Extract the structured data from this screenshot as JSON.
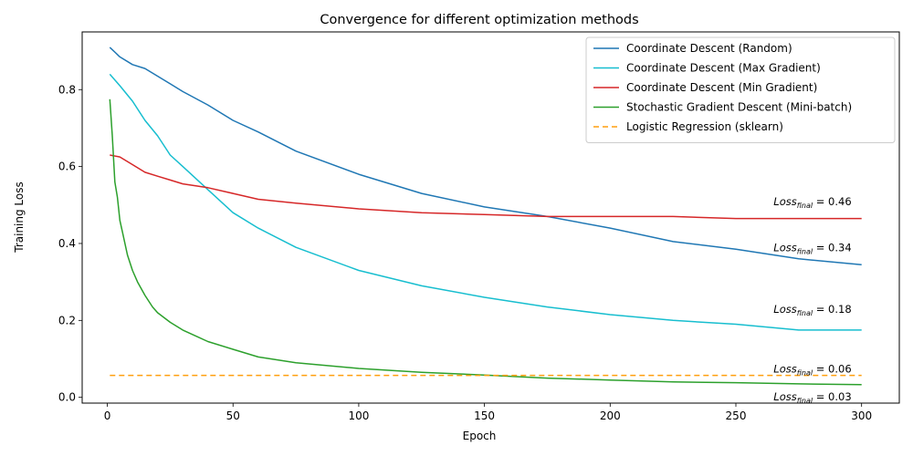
{
  "chart_data": {
    "type": "line",
    "title": "Convergence for different optimization methods",
    "xlabel": "Epoch",
    "ylabel": "Training Loss",
    "xlim": [
      -10,
      315
    ],
    "ylim": [
      -0.015,
      0.95
    ],
    "xticks": [
      0,
      50,
      100,
      150,
      200,
      250,
      300
    ],
    "yticks": [
      0.0,
      0.2,
      0.4,
      0.6,
      0.8
    ],
    "ytick_labels": [
      "0.0",
      "0.2",
      "0.4",
      "0.6",
      "0.8"
    ],
    "grid": false,
    "legend_position": "top-right",
    "series": [
      {
        "name": "Coordinate Descent (Random)",
        "color": "#1f77b4",
        "style": "solid",
        "x": [
          1,
          5,
          10,
          15,
          20,
          25,
          30,
          40,
          50,
          60,
          75,
          100,
          125,
          150,
          175,
          200,
          225,
          250,
          275,
          300
        ],
        "y": [
          0.91,
          0.885,
          0.865,
          0.855,
          0.835,
          0.815,
          0.795,
          0.76,
          0.72,
          0.69,
          0.64,
          0.58,
          0.53,
          0.495,
          0.47,
          0.44,
          0.405,
          0.385,
          0.36,
          0.345
        ]
      },
      {
        "name": "Coordinate Descent (Max Gradient)",
        "color": "#17becf",
        "style": "solid",
        "x": [
          1,
          5,
          10,
          15,
          20,
          25,
          30,
          40,
          50,
          60,
          75,
          100,
          125,
          150,
          175,
          200,
          225,
          250,
          275,
          300
        ],
        "y": [
          0.84,
          0.81,
          0.77,
          0.72,
          0.68,
          0.63,
          0.6,
          0.54,
          0.48,
          0.44,
          0.39,
          0.33,
          0.29,
          0.26,
          0.235,
          0.215,
          0.2,
          0.19,
          0.175,
          0.175
        ]
      },
      {
        "name": "Coordinate Descent (Min Gradient)",
        "color": "#d62728",
        "style": "solid",
        "x": [
          1,
          5,
          10,
          15,
          20,
          25,
          30,
          40,
          50,
          60,
          75,
          100,
          125,
          150,
          175,
          200,
          225,
          250,
          275,
          300
        ],
        "y": [
          0.63,
          0.625,
          0.605,
          0.585,
          0.575,
          0.565,
          0.555,
          0.545,
          0.53,
          0.515,
          0.505,
          0.49,
          0.48,
          0.475,
          0.47,
          0.47,
          0.47,
          0.465,
          0.465,
          0.465
        ]
      },
      {
        "name": "Stochastic Gradient Descent (Mini-batch)",
        "color": "#2ca02c",
        "style": "solid",
        "x": [
          1,
          2,
          3,
          4,
          5,
          6,
          8,
          10,
          12,
          15,
          18,
          20,
          25,
          30,
          35,
          40,
          50,
          60,
          75,
          100,
          125,
          150,
          175,
          200,
          225,
          250,
          275,
          300
        ],
        "y": [
          0.775,
          0.68,
          0.56,
          0.52,
          0.46,
          0.43,
          0.37,
          0.33,
          0.3,
          0.265,
          0.235,
          0.22,
          0.195,
          0.175,
          0.16,
          0.145,
          0.125,
          0.105,
          0.09,
          0.075,
          0.065,
          0.058,
          0.05,
          0.045,
          0.04,
          0.038,
          0.035,
          0.033
        ]
      },
      {
        "name": "Logistic Regression (sklearn)",
        "color": "#ff9f0f",
        "style": "dashed",
        "x": [
          1,
          300
        ],
        "y": [
          0.057,
          0.057
        ]
      }
    ],
    "annotations": [
      {
        "prefix": "Loss",
        "sub": "final",
        "suffix": " = 0.46",
        "x": 265,
        "y": 0.5,
        "color": "#000000"
      },
      {
        "prefix": "Loss",
        "sub": "final",
        "suffix": " = 0.34",
        "x": 265,
        "y": 0.38,
        "color": "#000000"
      },
      {
        "prefix": "Loss",
        "sub": "final",
        "suffix": " = 0.18",
        "x": 265,
        "y": 0.22,
        "color": "#000000"
      },
      {
        "prefix": "Loss",
        "sub": "final",
        "suffix": " = 0.06",
        "x": 265,
        "y": 0.065,
        "color": "#000000"
      },
      {
        "prefix": "Loss",
        "sub": "final",
        "suffix": " = 0.03",
        "x": 265,
        "y": -0.008,
        "color": "#000000"
      }
    ]
  }
}
